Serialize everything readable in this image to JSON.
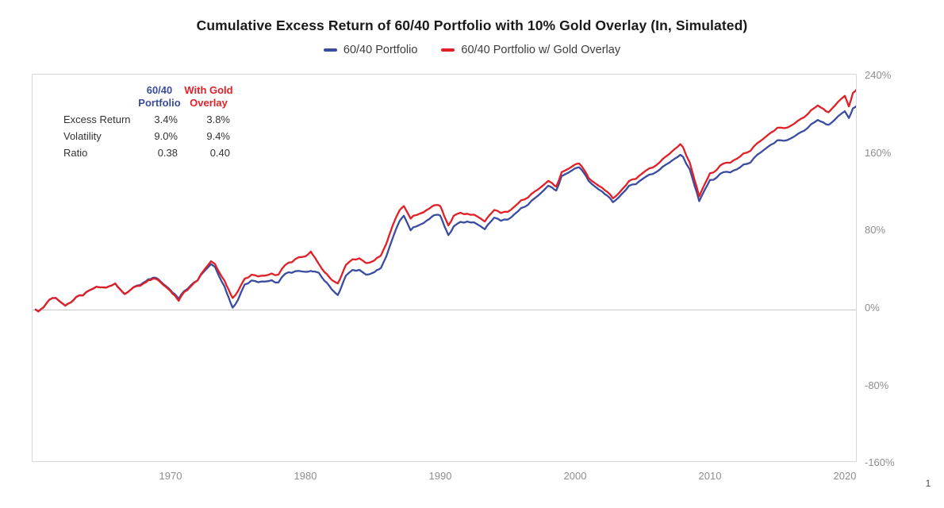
{
  "page": {
    "background": "#ffffff",
    "page_number": "1"
  },
  "chart_data": {
    "type": "line",
    "title": "Cumulative Excess Return of 60/40 Portfolio with 10% Gold Overlay (In, Simulated)",
    "legend_position": "top-center",
    "grid": "zero-line-only",
    "x_axis": {
      "label": "",
      "ticks": [
        1970,
        1980,
        1990,
        2000,
        2010,
        2020
      ],
      "tick_labels": [
        "1970",
        "1980",
        "1990",
        "2000",
        "2010",
        "2020"
      ],
      "range": [
        1959.7,
        2021.3
      ]
    },
    "y_axis": {
      "label": "",
      "unit": "%",
      "side": "right",
      "ticks_pct": [
        240,
        160,
        80,
        0,
        -80,
        -160
      ],
      "tick_labels": [
        "240%",
        "160%",
        "80%",
        "0%",
        "-80%",
        "-160%"
      ],
      "range_pct": [
        -160,
        241
      ]
    },
    "x_years": [
      1960.0,
      1960.2,
      1961.0,
      1961.5,
      1962.2,
      1963.0,
      1964.0,
      1965.0,
      1965.9,
      1966.6,
      1967.0,
      1968.0,
      1968.7,
      1969.5,
      1970.0,
      1970.6,
      1971.0,
      1971.5,
      1972.0,
      1973.0,
      1973.3,
      1974.0,
      1974.6,
      1975.0,
      1975.5,
      1976.0,
      1977.0,
      1978.0,
      1978.5,
      1979.0,
      1979.5,
      1980.0,
      1980.4,
      1981.0,
      1981.8,
      1982.4,
      1983.0,
      1983.5,
      1984.0,
      1984.5,
      1985.0,
      1985.6,
      1986.0,
      1986.5,
      1987.0,
      1987.3,
      1987.8,
      1988.0,
      1989.0,
      1989.7,
      1990.0,
      1990.6,
      1991.0,
      1992.0,
      1993.0,
      1993.3,
      1994.0,
      1995.0,
      1996.0,
      1997.0,
      1998.0,
      1998.6,
      1999.0,
      2000.0,
      2000.3,
      2001.0,
      2002.0,
      2002.8,
      2003.0,
      2004.0,
      2005.0,
      2006.0,
      2007.0,
      2007.8,
      2008.0,
      2008.5,
      2009.2,
      2010.0,
      2011.0,
      2012.0,
      2013.0,
      2014.0,
      2015.0,
      2016.0,
      2017.0,
      2018.0,
      2018.8,
      2019.0,
      2020.0,
      2020.3,
      2020.6,
      2020.9
    ],
    "series": [
      {
        "name": "60/40 Portfolio",
        "color": "#3a4ca0",
        "values_pct": [
          0,
          -2,
          10,
          12,
          4,
          13,
          20,
          23,
          27,
          16,
          20,
          28,
          33,
          26,
          20,
          11,
          19,
          25,
          30,
          47,
          44,
          24,
          2,
          10,
          26,
          30,
          29,
          28,
          37,
          38,
          40,
          39,
          40,
          38,
          24,
          15,
          35,
          41,
          41,
          36,
          38,
          43,
          55,
          75,
          92,
          97,
          82,
          85,
          92,
          98,
          97,
          77,
          86,
          91,
          86,
          83,
          95,
          93,
          105,
          115,
          128,
          123,
          138,
          146,
          147,
          133,
          122,
          111,
          113,
          128,
          135,
          142,
          152,
          160,
          158,
          145,
          112,
          134,
          142,
          145,
          152,
          165,
          175,
          177,
          185,
          196,
          191,
          193,
          205,
          198,
          208,
          211
        ]
      },
      {
        "name": "60/40 Portfolio w/ Gold Overlay",
        "color": "#e01f26",
        "values_pct": [
          0,
          -2,
          10,
          12,
          4,
          13,
          20,
          23,
          27,
          16,
          20,
          27,
          32,
          25,
          19,
          9,
          18,
          24,
          30,
          50,
          47,
          30,
          12,
          19,
          32,
          36,
          35,
          36,
          46,
          49,
          54,
          55,
          60,
          47,
          33,
          27,
          46,
          52,
          53,
          48,
          50,
          56,
          68,
          88,
          103,
          107,
          94,
          97,
          103,
          108,
          107,
          87,
          97,
          99,
          94,
          91,
          103,
          101,
          113,
          122,
          133,
          127,
          142,
          150,
          151,
          136,
          126,
          115,
          117,
          133,
          141,
          149,
          161,
          171,
          168,
          152,
          117,
          141,
          151,
          156,
          164,
          177,
          188,
          190,
          199,
          211,
          204,
          207,
          221,
          210,
          224,
          228
        ]
      }
    ],
    "stats_table": {
      "columns": [
        {
          "line1": "60/40",
          "line2": "Portfolio",
          "color": "#3a4ca0"
        },
        {
          "line1": "With Gold",
          "line2": "Overlay",
          "color": "#e01f26"
        }
      ],
      "rows": [
        {
          "label": "Excess Return",
          "values": [
            "3.4%",
            "3.8%"
          ]
        },
        {
          "label": "Volatility",
          "values": [
            "9.0%",
            "9.4%"
          ]
        },
        {
          "label": "Ratio",
          "values": [
            "0.38",
            "0.40"
          ]
        }
      ]
    }
  }
}
